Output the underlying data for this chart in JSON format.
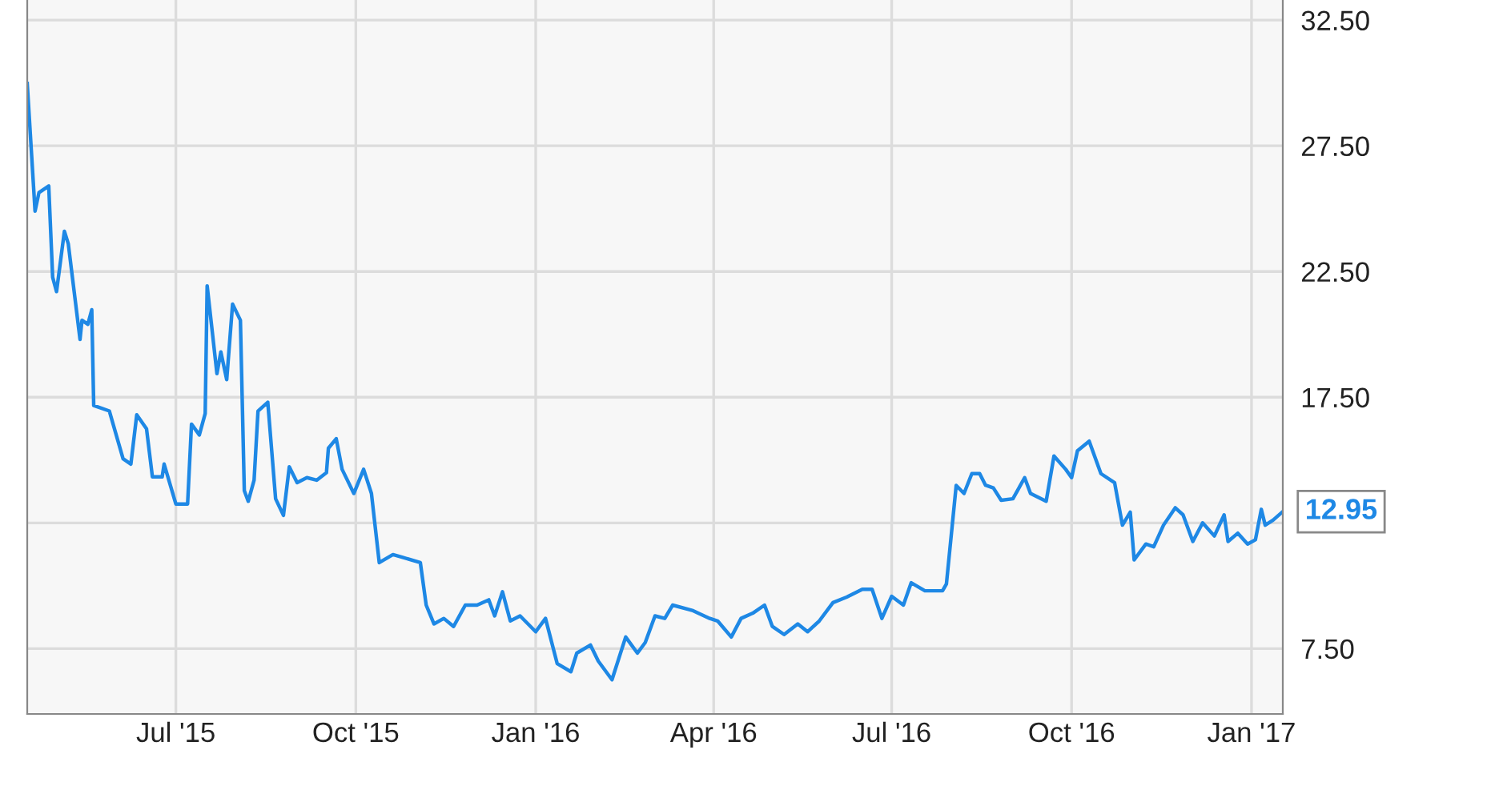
{
  "chart_data": {
    "type": "line",
    "x": [
      "2015-04-16",
      "2015-04-20",
      "2015-04-22",
      "2015-04-27",
      "2015-04-29",
      "2015-05-01",
      "2015-05-05",
      "2015-05-07",
      "2015-05-13",
      "2015-05-14",
      "2015-05-17",
      "2015-05-19",
      "2015-05-20",
      "2015-05-28",
      "2015-06-04",
      "2015-06-08",
      "2015-06-11",
      "2015-06-16",
      "2015-06-19",
      "2015-06-24",
      "2015-06-25",
      "2015-07-01",
      "2015-07-07",
      "2015-07-09",
      "2015-07-13",
      "2015-07-16",
      "2015-07-17",
      "2015-07-22",
      "2015-07-24",
      "2015-07-27",
      "2015-07-30",
      "2015-08-03",
      "2015-08-05",
      "2015-08-07",
      "2015-08-10",
      "2015-08-12",
      "2015-08-17",
      "2015-08-21",
      "2015-08-25",
      "2015-08-28",
      "2015-09-01",
      "2015-09-06",
      "2015-09-11",
      "2015-09-16",
      "2015-09-17",
      "2015-09-21",
      "2015-09-24",
      "2015-09-30",
      "2015-10-05",
      "2015-10-09",
      "2015-10-13",
      "2015-10-20",
      "2015-10-25",
      "2015-11-03",
      "2015-11-06",
      "2015-11-10",
      "2015-11-15",
      "2015-11-20",
      "2015-11-26",
      "2015-12-02",
      "2015-12-08",
      "2015-12-11",
      "2015-12-15",
      "2015-12-19",
      "2015-12-24",
      "2016-01-01",
      "2016-01-06",
      "2016-01-12",
      "2016-01-19",
      "2016-01-22",
      "2016-01-29",
      "2016-02-02",
      "2016-02-09",
      "2016-02-16",
      "2016-02-22",
      "2016-02-26",
      "2016-03-02",
      "2016-03-07",
      "2016-03-11",
      "2016-03-21",
      "2016-03-30",
      "2016-04-03",
      "2016-04-10",
      "2016-04-15",
      "2016-04-21",
      "2016-04-27",
      "2016-05-01",
      "2016-05-07",
      "2016-05-14",
      "2016-05-19",
      "2016-05-25",
      "2016-06-01",
      "2016-06-08",
      "2016-06-16",
      "2016-06-21",
      "2016-06-26",
      "2016-07-01",
      "2016-07-07",
      "2016-07-11",
      "2016-07-18",
      "2016-07-27",
      "2016-07-29",
      "2016-08-03",
      "2016-08-07",
      "2016-08-11",
      "2016-08-15",
      "2016-08-18",
      "2016-08-22",
      "2016-08-26",
      "2016-09-01",
      "2016-09-07",
      "2016-09-10",
      "2016-09-18",
      "2016-09-22",
      "2016-09-28",
      "2016-10-01",
      "2016-10-04",
      "2016-10-10",
      "2016-10-16",
      "2016-10-23",
      "2016-10-27",
      "2016-10-31",
      "2016-11-02",
      "2016-11-08",
      "2016-11-12",
      "2016-11-17",
      "2016-11-23",
      "2016-11-27",
      "2016-12-02",
      "2016-12-07",
      "2016-12-13",
      "2016-12-18",
      "2016-12-20",
      "2016-12-25",
      "2016-12-30",
      "2017-01-03",
      "2017-01-06",
      "2017-01-08",
      "2017-01-12",
      "2017-01-17"
    ],
    "series": [
      {
        "color": "#1e88e5",
        "values": [
          29.98,
          24.9,
          25.64,
          25.9,
          22.27,
          21.7,
          24.1,
          23.6,
          19.8,
          20.56,
          20.4,
          20.98,
          17.17,
          16.95,
          15.05,
          14.84,
          16.8,
          16.24,
          14.33,
          14.33,
          14.84,
          13.25,
          13.25,
          16.43,
          16.0,
          16.85,
          21.93,
          18.44,
          19.3,
          18.2,
          21.2,
          20.56,
          13.78,
          13.36,
          14.2,
          16.95,
          17.3,
          13.46,
          12.8,
          14.73,
          14.1,
          14.3,
          14.2,
          14.5,
          15.47,
          15.85,
          14.63,
          13.67,
          14.63,
          13.67,
          10.92,
          11.24,
          11.13,
          10.92,
          9.23,
          8.48,
          8.7,
          8.38,
          9.23,
          9.23,
          9.44,
          8.8,
          9.76,
          8.6,
          8.8,
          8.17,
          8.7,
          6.9,
          6.58,
          7.32,
          7.64,
          7.0,
          6.26,
          7.96,
          7.32,
          7.74,
          8.8,
          8.7,
          9.23,
          9.02,
          8.7,
          8.6,
          7.96,
          8.7,
          8.91,
          9.23,
          8.38,
          8.06,
          8.48,
          8.17,
          8.6,
          9.33,
          9.55,
          9.86,
          9.86,
          8.7,
          9.58,
          9.23,
          10.12,
          9.8,
          9.8,
          10.07,
          13.99,
          13.67,
          14.46,
          14.46,
          14.0,
          13.89,
          13.4,
          13.46,
          14.3,
          13.67,
          13.36,
          15.16,
          14.63,
          14.3,
          15.37,
          15.75,
          14.46,
          14.1,
          12.41,
          12.93,
          11.03,
          11.66,
          11.55,
          12.41,
          13.1,
          12.82,
          11.76,
          12.5,
          11.98,
          12.82,
          11.76,
          12.09,
          11.66,
          11.83,
          13.04,
          12.41,
          12.61,
          12.95
        ]
      }
    ],
    "xlim": [
      "2015-04-16",
      "2017-01-17"
    ],
    "xticks": [
      {
        "value": "2015-07-01",
        "label": "Jul '15"
      },
      {
        "value": "2015-10-01",
        "label": "Oct '15"
      },
      {
        "value": "2016-01-01",
        "label": "Jan '16"
      },
      {
        "value": "2016-04-01",
        "label": "Apr '16"
      },
      {
        "value": "2016-07-01",
        "label": "Jul '16"
      },
      {
        "value": "2016-10-01",
        "label": "Oct '16"
      },
      {
        "value": "2017-01-01",
        "label": "Jan '17"
      }
    ],
    "ylim": [
      4.9,
      33.3
    ],
    "yticks": [
      {
        "value": 7.5,
        "label": "7.50"
      },
      {
        "value": 12.5,
        "label": null
      },
      {
        "value": 17.5,
        "label": "17.50"
      },
      {
        "value": 22.5,
        "label": "22.50"
      },
      {
        "value": 27.5,
        "label": "27.50"
      },
      {
        "value": 32.5,
        "label": "32.50"
      }
    ],
    "grid": true,
    "annotations": [
      {
        "text": "12.95",
        "x": "2017-01-17",
        "y": 12.95
      }
    ]
  }
}
